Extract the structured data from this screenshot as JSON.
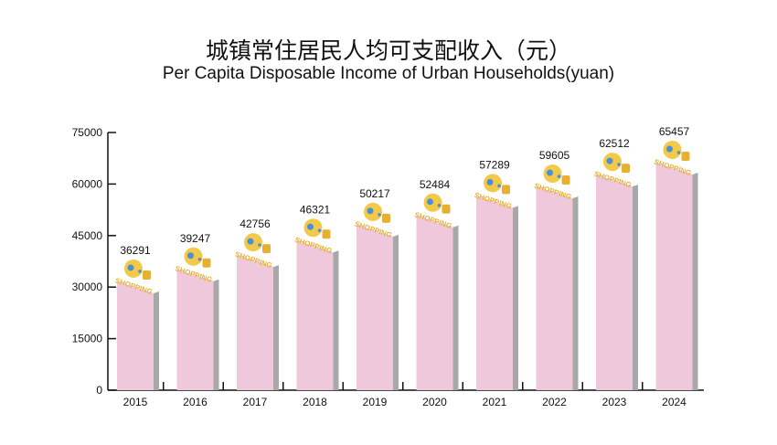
{
  "chart_data": {
    "type": "bar",
    "title": "城镇常住居民人均可支配收入（元）",
    "subtitle": "Per Capita Disposable Income of Urban Households(yuan)",
    "xlabel": "",
    "ylabel": "",
    "categories": [
      "2015",
      "2016",
      "2017",
      "2018",
      "2019",
      "2020",
      "2021",
      "2022",
      "2023",
      "2024"
    ],
    "values": [
      36291,
      39247,
      42756,
      46321,
      50217,
      52484,
      57289,
      59605,
      62512,
      65457
    ],
    "value_labels": [
      "36291",
      "39247",
      "42756",
      "46321",
      "50217",
      "52484",
      "57289",
      "59605",
      "62512",
      "65457"
    ],
    "ylim": [
      0,
      75000
    ],
    "yticks": [
      0,
      15000,
      30000,
      45000,
      60000,
      75000
    ],
    "ytick_labels": [
      "0",
      "15000",
      "30000",
      "45000",
      "60000",
      "75000"
    ],
    "grid": false,
    "legend": "none",
    "colors": {
      "bar": "#f0c8dc",
      "bar_side": "#a8a8a8",
      "icon": "#f3c94a",
      "icon_text": "#e8b030",
      "accent": "#4a90d9"
    },
    "bar_icon_label": "SHOPPING"
  }
}
